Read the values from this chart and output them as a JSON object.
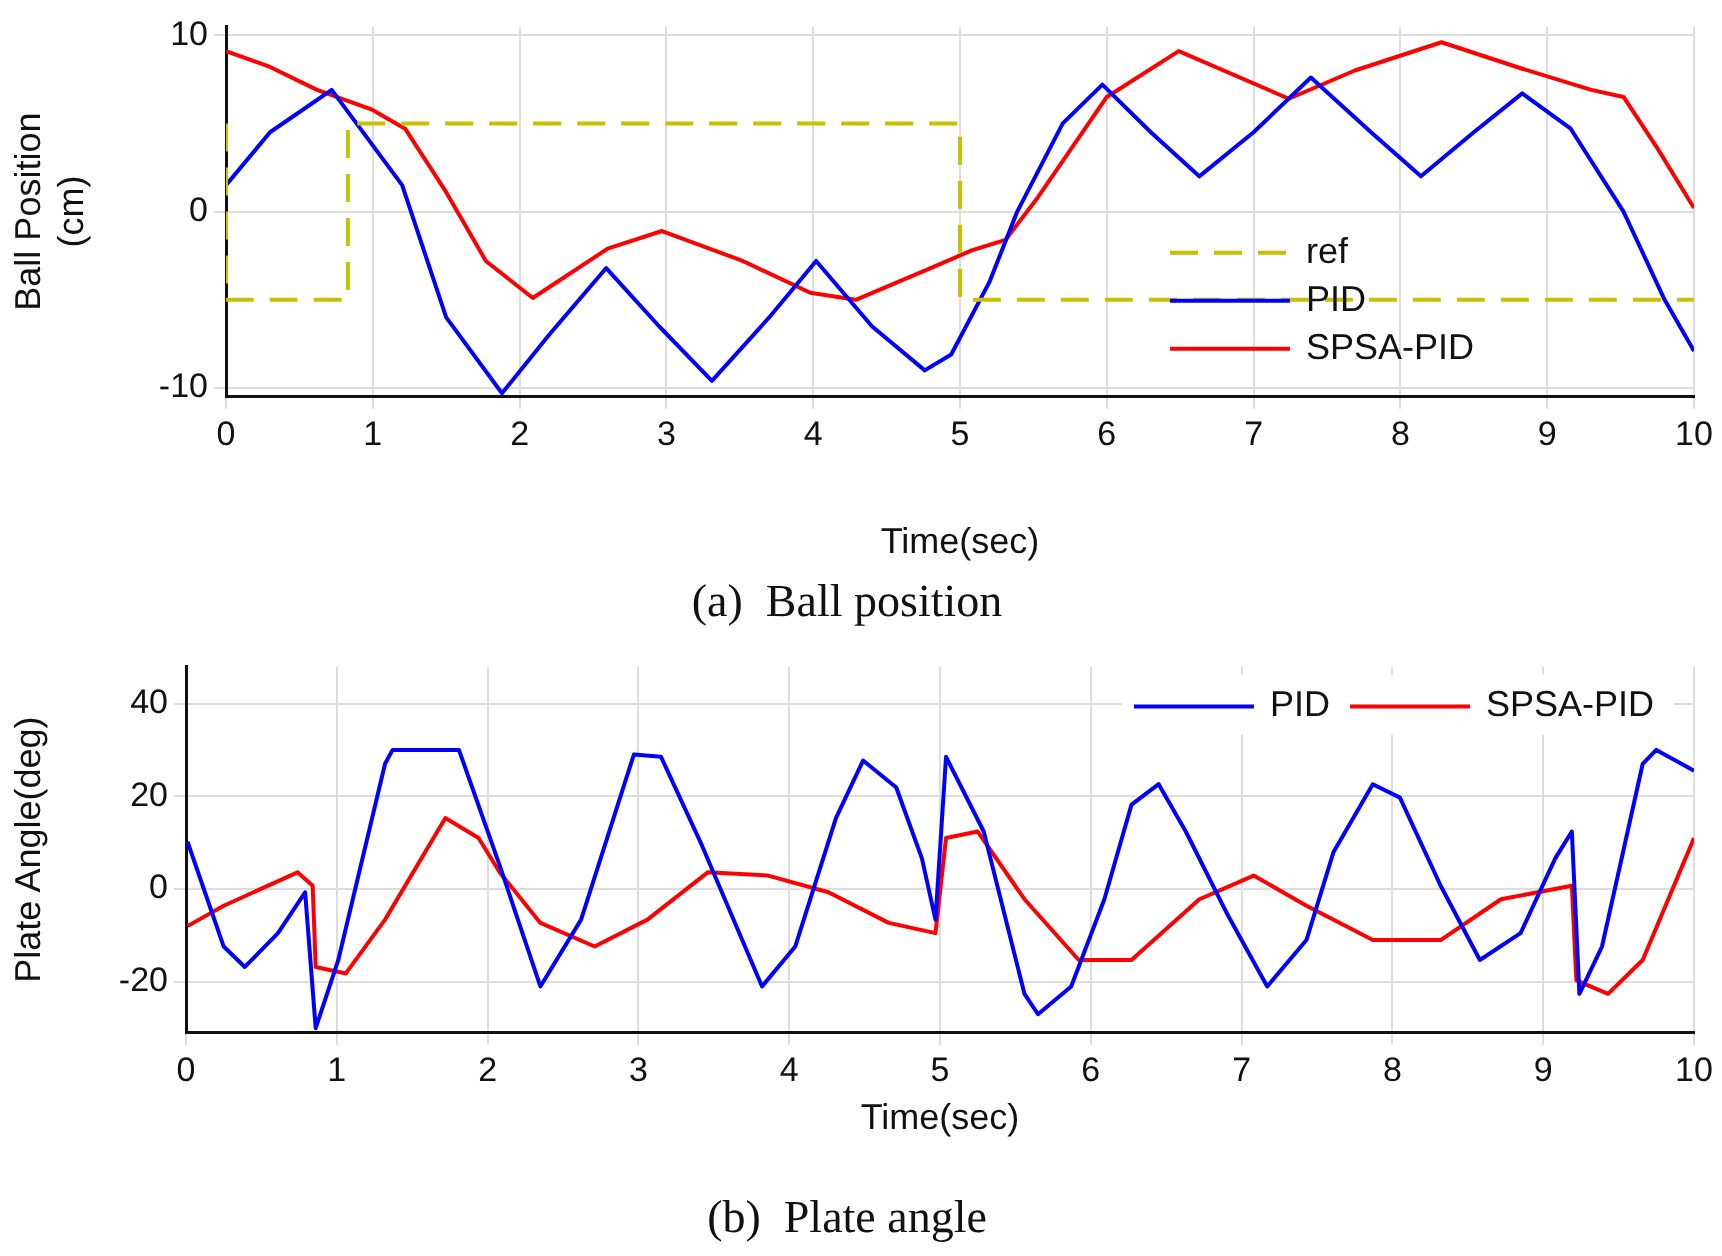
{
  "chart_data": [
    {
      "type": "line",
      "title": "(a)  Ball position",
      "xlabel": "Time(sec)",
      "ylabel": "Ball Position\n(cm)",
      "xlim": [
        0,
        10
      ],
      "xticks": [
        0,
        1,
        2,
        3,
        4,
        5,
        6,
        7,
        8,
        9,
        10
      ],
      "ylim": [
        -10.5,
        10.5
      ],
      "yticks": [
        -10,
        0,
        10
      ],
      "grid": true,
      "legend": "bottom right",
      "marker": "none",
      "series": [
        {
          "name": "ref",
          "type": "step",
          "color": "#c8c000",
          "line_style": "dashed",
          "x": [
            0,
            0.83,
            5,
            9.2,
            10
          ],
          "values": [
            5,
            -5,
            5,
            -5,
            -5
          ]
        },
        {
          "name": "PID",
          "color": "#0000ff",
          "x": [
            0,
            0.3,
            0.72,
            1.2,
            1.5,
            1.88,
            2.2,
            2.59,
            2.95,
            3.31,
            3.7,
            4.02,
            4.4,
            4.76,
            4.94,
            5.2,
            5.39,
            5.7,
            5.97,
            6.3,
            6.63,
            7.0,
            7.39,
            7.8,
            8.14,
            8.5,
            8.83,
            9.16,
            9.52,
            9.8,
            10
          ],
          "values": [
            1.5,
            4.5,
            6.9,
            1.5,
            -6,
            -10.3,
            -7,
            -3.2,
            -6.5,
            -9.6,
            -6,
            -2.8,
            -6.5,
            -9,
            -8.1,
            -4,
            0,
            5,
            7.2,
            4.5,
            2,
            4.5,
            7.6,
            4.5,
            2,
            4.5,
            6.7,
            4.7,
            0,
            -5,
            -7.9
          ]
        },
        {
          "name": "SPSA-PID",
          "color": "#ff0000",
          "x": [
            0,
            0.3,
            0.62,
            0.99,
            1.22,
            1.5,
            1.77,
            2.09,
            2.6,
            2.97,
            3.52,
            3.98,
            4.29,
            4.8,
            5.08,
            5.31,
            5.53,
            6.0,
            6.49,
            7.24,
            7.69,
            8.28,
            8.83,
            9.3,
            9.52,
            9.75,
            10
          ],
          "values": [
            9.1,
            8.2,
            6.9,
            5.8,
            4.7,
            1.1,
            -2.8,
            -4.9,
            -2.1,
            -1.1,
            -2.8,
            -4.6,
            -5,
            -3.2,
            -2.2,
            -1.6,
            0.8,
            6.5,
            9.1,
            6.4,
            8,
            9.6,
            8.1,
            6.9,
            6.5,
            3.6,
            0.2
          ]
        }
      ]
    },
    {
      "type": "line",
      "title": "(b)  Plate angle",
      "xlabel": "Time(sec)",
      "ylabel": "Plate Angle(deg)",
      "xlim": [
        0,
        10
      ],
      "xticks": [
        0,
        1,
        2,
        3,
        4,
        5,
        6,
        7,
        8,
        9,
        10
      ],
      "ylim": [
        -31,
        48
      ],
      "yticks": [
        -20,
        0,
        20,
        40
      ],
      "grid": true,
      "legend": "top right",
      "marker": "none",
      "series": [
        {
          "name": "PID",
          "color": "#0000ff",
          "x": [
            0.01,
            0.25,
            0.39,
            0.61,
            0.79,
            0.86,
            1.01,
            1.32,
            1.37,
            1.81,
            2.08,
            2.35,
            2.62,
            2.97,
            3.15,
            3.42,
            3.82,
            4.04,
            4.31,
            4.49,
            4.71,
            4.88,
            4.97,
            5.04,
            5.29,
            5.56,
            5.65,
            5.87,
            6.09,
            6.27,
            6.45,
            6.63,
            6.9,
            7.17,
            7.43,
            7.61,
            7.87,
            8.05,
            8.32,
            8.58,
            8.85,
            9.08,
            9.19,
            9.24,
            9.39,
            9.66,
            9.75,
            10
          ],
          "values": [
            10.2,
            -12.4,
            -16.8,
            -9.5,
            -0.7,
            -30,
            -15.3,
            27,
            30,
            30,
            5.1,
            -21,
            -6.6,
            29,
            28.5,
            9.5,
            -21,
            -12.4,
            15.3,
            27.7,
            21.9,
            6.6,
            -6.6,
            28.5,
            12.4,
            -22.6,
            -27,
            -21,
            -2.2,
            18.2,
            22.6,
            12.4,
            -5.1,
            -21,
            -11,
            8,
            22.6,
            19.7,
            0.7,
            -15.3,
            -9.5,
            6.6,
            12.4,
            -22.6,
            -12.4,
            27,
            30,
            25.5
          ]
        },
        {
          "name": "SPSA-PID",
          "color": "#ff0000",
          "x": [
            0.01,
            0.25,
            0.74,
            0.84,
            0.86,
            1.06,
            1.32,
            1.72,
            1.94,
            2.08,
            2.35,
            2.71,
            3.06,
            3.46,
            3.86,
            4.26,
            4.66,
            4.97,
            5.04,
            5.25,
            5.56,
            5.92,
            6.27,
            6.72,
            7.08,
            7.43,
            7.87,
            8.32,
            8.72,
            9.19,
            9.22,
            9.43,
            9.66,
            10
          ],
          "values": [
            -8,
            -3.6,
            3.6,
            0.7,
            -16.8,
            -18.2,
            -6.6,
            15.3,
            11,
            3.6,
            -7.3,
            -12.4,
            -6.6,
            3.6,
            2.9,
            -0.7,
            -7.3,
            -9.5,
            11,
            12.4,
            -2.2,
            -15.3,
            -15.3,
            -2.2,
            2.9,
            -3.6,
            -11,
            -11,
            -2.2,
            0.7,
            -19.7,
            -22.6,
            -15.3,
            11
          ]
        }
      ]
    }
  ]
}
